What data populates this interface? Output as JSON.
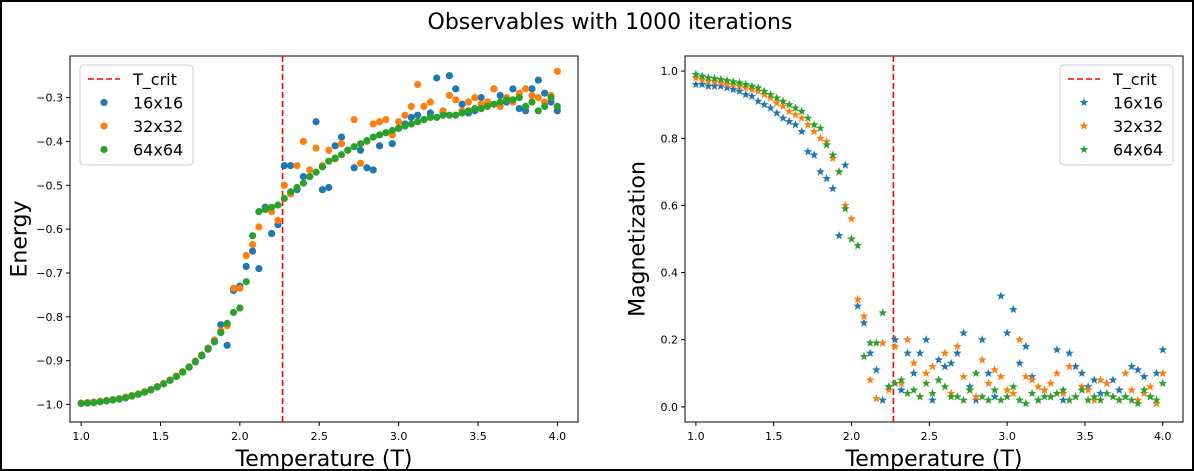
{
  "figure": {
    "suptitle": "Observables with 1000 iterations"
  },
  "colors": {
    "s16": "#1f77b4",
    "s32": "#ff7f0e",
    "s64": "#2ca02c",
    "tcrit": "#ff0000"
  },
  "chart_data": [
    {
      "type": "scatter",
      "marker": "circle",
      "xlabel": "Temperature (T)",
      "ylabel": "Energy",
      "xlim": [
        0.93,
        4.13
      ],
      "ylim": [
        -1.04,
        -0.205
      ],
      "xticks": [
        1.0,
        1.5,
        2.0,
        2.5,
        3.0,
        3.5,
        4.0
      ],
      "xtick_labels": [
        "1.0",
        "1.5",
        "2.0",
        "2.5",
        "3.0",
        "3.5",
        "4.0"
      ],
      "yticks": [
        -1.0,
        -0.9,
        -0.8,
        -0.7,
        -0.6,
        -0.5,
        -0.4,
        -0.3
      ],
      "ytick_labels": [
        "−1.0",
        "−0.9",
        "−0.8",
        "−0.7",
        "−0.6",
        "−0.5",
        "−0.4",
        "−0.3"
      ],
      "grid": false,
      "legend_position": "upper-left",
      "vline": {
        "name": "T_crit",
        "x": 2.269
      },
      "x": [
        1.0,
        1.04,
        1.08,
        1.12,
        1.16,
        1.2,
        1.24,
        1.28,
        1.32,
        1.36,
        1.4,
        1.44,
        1.48,
        1.52,
        1.56,
        1.6,
        1.64,
        1.68,
        1.72,
        1.76,
        1.8,
        1.84,
        1.88,
        1.92,
        1.96,
        2.0,
        2.04,
        2.08,
        2.12,
        2.16,
        2.2,
        2.24,
        2.28,
        2.32,
        2.36,
        2.4,
        2.44,
        2.48,
        2.52,
        2.56,
        2.6,
        2.64,
        2.68,
        2.72,
        2.76,
        2.8,
        2.84,
        2.88,
        2.92,
        2.96,
        3.0,
        3.04,
        3.08,
        3.12,
        3.16,
        3.2,
        3.24,
        3.28,
        3.32,
        3.36,
        3.4,
        3.44,
        3.48,
        3.52,
        3.56,
        3.6,
        3.64,
        3.68,
        3.72,
        3.76,
        3.8,
        3.84,
        3.88,
        3.92,
        3.96,
        4.0
      ],
      "series": [
        {
          "name": "16x16",
          "color_key": "s16",
          "values": [
            -0.997,
            -0.996,
            -0.995,
            -0.993,
            -0.991,
            -0.989,
            -0.987,
            -0.984,
            -0.98,
            -0.976,
            -0.972,
            -0.966,
            -0.96,
            -0.953,
            -0.945,
            -0.936,
            -0.926,
            -0.915,
            -0.903,
            -0.889,
            -0.874,
            -0.857,
            -0.818,
            -0.865,
            -0.74,
            -0.73,
            -0.685,
            -0.65,
            -0.69,
            -0.55,
            -0.61,
            -0.59,
            -0.455,
            -0.455,
            -0.51,
            -0.48,
            -0.48,
            -0.355,
            -0.51,
            -0.505,
            -0.41,
            -0.39,
            -0.42,
            -0.46,
            -0.42,
            -0.46,
            -0.465,
            -0.41,
            -0.38,
            -0.405,
            -0.37,
            -0.36,
            -0.345,
            -0.34,
            -0.35,
            -0.335,
            -0.255,
            -0.335,
            -0.25,
            -0.28,
            -0.315,
            -0.335,
            -0.33,
            -0.3,
            -0.315,
            -0.28,
            -0.295,
            -0.31,
            -0.28,
            -0.325,
            -0.33,
            -0.28,
            -0.26,
            -0.29,
            -0.31,
            -0.33
          ]
        },
        {
          "name": "32x32",
          "color_key": "s32",
          "values": [
            -0.997,
            -0.996,
            -0.995,
            -0.993,
            -0.991,
            -0.989,
            -0.987,
            -0.983,
            -0.98,
            -0.976,
            -0.971,
            -0.966,
            -0.959,
            -0.952,
            -0.944,
            -0.935,
            -0.925,
            -0.914,
            -0.901,
            -0.887,
            -0.871,
            -0.853,
            -0.832,
            -0.82,
            -0.735,
            -0.735,
            -0.66,
            -0.635,
            -0.595,
            -0.555,
            -0.56,
            -0.58,
            -0.5,
            -0.52,
            -0.455,
            -0.4,
            -0.465,
            -0.415,
            -0.455,
            -0.42,
            -0.44,
            -0.405,
            -0.42,
            -0.35,
            -0.45,
            -0.4,
            -0.36,
            -0.355,
            -0.35,
            -0.385,
            -0.355,
            -0.34,
            -0.32,
            -0.27,
            -0.32,
            -0.31,
            -0.345,
            -0.33,
            -0.295,
            -0.305,
            -0.33,
            -0.31,
            -0.3,
            -0.315,
            -0.31,
            -0.28,
            -0.32,
            -0.3,
            -0.31,
            -0.29,
            -0.28,
            -0.295,
            -0.3,
            -0.31,
            -0.295,
            -0.24
          ]
        },
        {
          "name": "64x64",
          "color_key": "s64",
          "values": [
            -0.998,
            -0.997,
            -0.996,
            -0.994,
            -0.992,
            -0.99,
            -0.988,
            -0.985,
            -0.981,
            -0.977,
            -0.972,
            -0.967,
            -0.96,
            -0.953,
            -0.945,
            -0.936,
            -0.926,
            -0.915,
            -0.902,
            -0.888,
            -0.873,
            -0.856,
            -0.836,
            -0.815,
            -0.79,
            -0.78,
            -0.72,
            -0.615,
            -0.56,
            -0.555,
            -0.55,
            -0.545,
            -0.53,
            -0.515,
            -0.505,
            -0.495,
            -0.48,
            -0.47,
            -0.458,
            -0.445,
            -0.438,
            -0.43,
            -0.42,
            -0.412,
            -0.405,
            -0.398,
            -0.39,
            -0.385,
            -0.38,
            -0.375,
            -0.37,
            -0.365,
            -0.36,
            -0.355,
            -0.35,
            -0.345,
            -0.345,
            -0.34,
            -0.34,
            -0.34,
            -0.335,
            -0.33,
            -0.325,
            -0.325,
            -0.32,
            -0.315,
            -0.31,
            -0.305,
            -0.305,
            -0.3,
            -0.32,
            -0.31,
            -0.33,
            -0.32,
            -0.3,
            -0.32
          ]
        }
      ]
    },
    {
      "type": "scatter",
      "marker": "star",
      "xlabel": "Temperature (T)",
      "ylabel": "Magnetization",
      "xlim": [
        0.93,
        4.13
      ],
      "ylim": [
        -0.045,
        1.045
      ],
      "xticks": [
        1.0,
        1.5,
        2.0,
        2.5,
        3.0,
        3.5,
        4.0
      ],
      "xtick_labels": [
        "1.0",
        "1.5",
        "2.0",
        "2.5",
        "3.0",
        "3.5",
        "4.0"
      ],
      "yticks": [
        0.0,
        0.2,
        0.4,
        0.6,
        0.8,
        1.0
      ],
      "ytick_labels": [
        "0.0",
        "0.2",
        "0.4",
        "0.6",
        "0.8",
        "1.0"
      ],
      "grid": false,
      "legend_position": "upper-right",
      "vline": {
        "name": "T_crit",
        "x": 2.269
      },
      "x": [
        1.0,
        1.04,
        1.08,
        1.12,
        1.16,
        1.2,
        1.24,
        1.28,
        1.32,
        1.36,
        1.4,
        1.44,
        1.48,
        1.52,
        1.56,
        1.6,
        1.64,
        1.68,
        1.72,
        1.76,
        1.8,
        1.84,
        1.88,
        1.92,
        1.96,
        2.0,
        2.04,
        2.08,
        2.12,
        2.16,
        2.2,
        2.24,
        2.28,
        2.32,
        2.36,
        2.4,
        2.44,
        2.48,
        2.52,
        2.56,
        2.6,
        2.64,
        2.68,
        2.72,
        2.76,
        2.8,
        2.84,
        2.88,
        2.92,
        2.96,
        3.0,
        3.04,
        3.08,
        3.12,
        3.16,
        3.2,
        3.24,
        3.28,
        3.32,
        3.36,
        3.4,
        3.44,
        3.48,
        3.52,
        3.56,
        3.6,
        3.64,
        3.68,
        3.72,
        3.76,
        3.8,
        3.84,
        3.88,
        3.92,
        3.96,
        4.0
      ],
      "series": [
        {
          "name": "16x16",
          "color_key": "s16",
          "values": [
            0.96,
            0.96,
            0.955,
            0.955,
            0.955,
            0.95,
            0.945,
            0.94,
            0.93,
            0.925,
            0.91,
            0.9,
            0.89,
            0.875,
            0.86,
            0.85,
            0.84,
            0.82,
            0.76,
            0.75,
            0.7,
            0.68,
            0.65,
            0.51,
            0.72,
            0.5,
            0.3,
            0.25,
            0.16,
            0.11,
            0.02,
            0.06,
            0.2,
            0.05,
            0.16,
            0.1,
            0.16,
            0.2,
            0.02,
            0.14,
            0.12,
            0.13,
            0.16,
            0.22,
            0.06,
            0.02,
            0.2,
            0.1,
            0.03,
            0.33,
            0.22,
            0.29,
            0.13,
            0.18,
            0.09,
            0.02,
            0.05,
            0.03,
            0.17,
            0.02,
            0.16,
            0.12,
            0.1,
            0.06,
            0.08,
            0.04,
            0.07,
            0.08,
            0.05,
            0.03,
            0.12,
            0.11,
            0.09,
            0.03,
            0.1,
            0.17
          ]
        },
        {
          "name": "32x32",
          "color_key": "s32",
          "values": [
            0.98,
            0.975,
            0.97,
            0.97,
            0.965,
            0.96,
            0.96,
            0.955,
            0.95,
            0.945,
            0.94,
            0.93,
            0.92,
            0.905,
            0.895,
            0.88,
            0.87,
            0.86,
            0.84,
            0.82,
            0.8,
            0.79,
            0.74,
            0.7,
            0.6,
            0.56,
            0.32,
            0.27,
            0.08,
            0.025,
            0.19,
            0.05,
            0.18,
            0.07,
            0.2,
            0.13,
            0.03,
            0.1,
            0.12,
            0.08,
            0.16,
            0.04,
            0.18,
            0.09,
            0.05,
            0.03,
            0.14,
            0.07,
            0.11,
            0.09,
            0.05,
            0.04,
            0.2,
            0.09,
            0.08,
            0.06,
            0.05,
            0.07,
            0.1,
            0.04,
            0.12,
            0.03,
            0.06,
            0.05,
            0.02,
            0.08,
            0.07,
            0.03,
            0.02,
            0.1,
            0.05,
            0.02,
            0.04,
            0.06,
            0.01,
            0.1
          ]
        },
        {
          "name": "64x64",
          "color_key": "s64",
          "values": [
            0.99,
            0.985,
            0.98,
            0.978,
            0.975,
            0.972,
            0.968,
            0.965,
            0.96,
            0.955,
            0.95,
            0.94,
            0.93,
            0.92,
            0.91,
            0.9,
            0.89,
            0.88,
            0.86,
            0.84,
            0.83,
            0.78,
            0.75,
            0.7,
            0.59,
            0.5,
            0.48,
            0.15,
            0.19,
            0.19,
            0.28,
            0.06,
            0.07,
            0.08,
            0.04,
            0.05,
            0.03,
            0.07,
            0.04,
            0.08,
            0.06,
            0.03,
            0.03,
            0.02,
            0.05,
            0.1,
            0.03,
            0.02,
            0.05,
            0.02,
            0.03,
            0.06,
            0.02,
            0.01,
            0.04,
            0.02,
            0.03,
            0.03,
            0.04,
            0.05,
            0.02,
            0.03,
            0.05,
            0.02,
            0.03,
            0.02,
            0.04,
            0.03,
            0.02,
            0.03,
            0.02,
            0.01,
            0.05,
            0.03,
            0.02,
            0.07
          ]
        }
      ]
    }
  ]
}
